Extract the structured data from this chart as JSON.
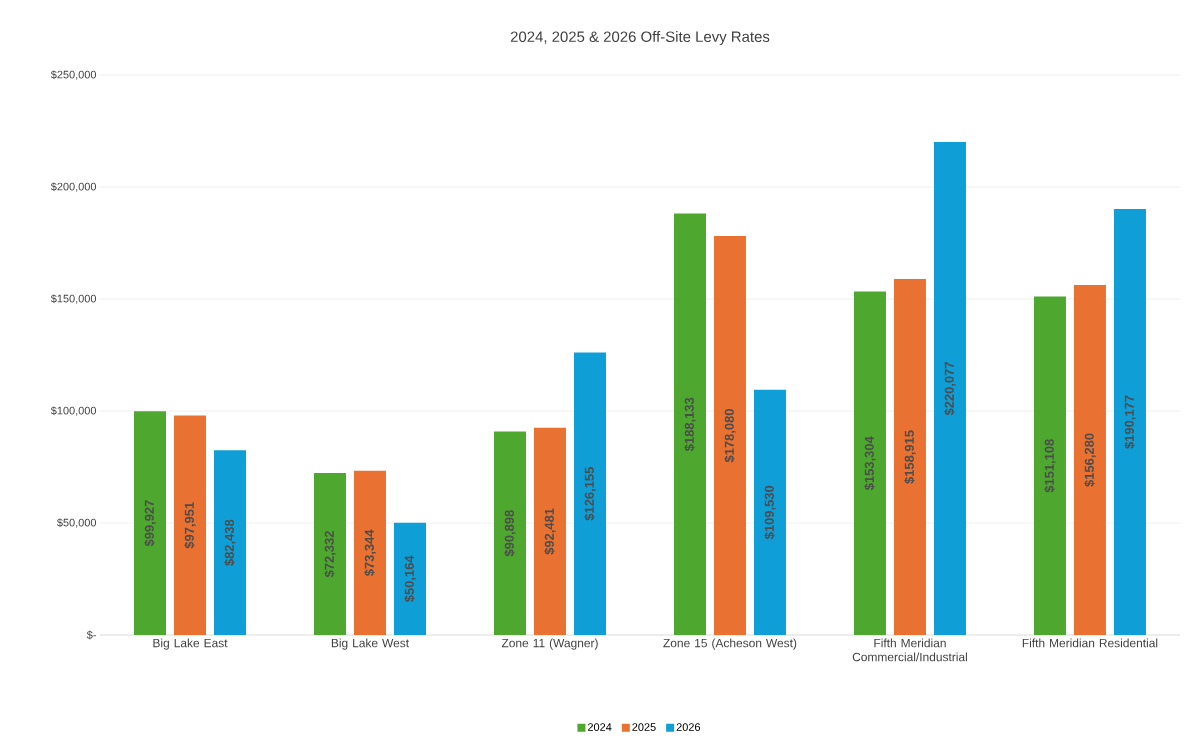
{
  "chart_data": {
    "type": "bar",
    "title": "2024, 2025 & 2026 Off-Site Levy Rates",
    "categories": [
      "Big Lake East",
      "Big Lake West",
      "Zone 11 (Wagner)",
      "Zone 15 (Acheson West)",
      "Fifth Meridian Commercial/Industrial",
      "Fifth Meridian Residential"
    ],
    "series": [
      {
        "name": "2024",
        "color": "#4ea72e",
        "values": [
          99927,
          72332,
          90898,
          188133,
          153304,
          151108
        ],
        "value_labels": [
          "$99,927",
          "$72,332",
          "$90,898",
          "$188,133",
          "$153,304",
          "$151,108"
        ]
      },
      {
        "name": "2025",
        "color": "#e97132",
        "values": [
          97951,
          73344,
          92481,
          178080,
          158915,
          156280
        ],
        "value_labels": [
          "$97,951",
          "$73,344",
          "$92,481",
          "$178,080",
          "$158,915",
          "$156,280"
        ]
      },
      {
        "name": "2026",
        "color": "#0f9ed5",
        "values": [
          82438,
          50164,
          126155,
          109530,
          220077,
          190177
        ],
        "value_labels": [
          "$82,438",
          "$50,164",
          "$126,155",
          "$109,530",
          "$220,077",
          "$190,177"
        ]
      }
    ],
    "ylim": [
      0,
      250000
    ],
    "yticks": [
      {
        "value": 0,
        "label": "$-"
      },
      {
        "value": 50000,
        "label": "$50,000"
      },
      {
        "value": 100000,
        "label": "$100,000"
      },
      {
        "value": 150000,
        "label": "$150,000"
      },
      {
        "value": 200000,
        "label": "$200,000"
      },
      {
        "value": 250000,
        "label": "$250,000"
      }
    ],
    "grid": "y",
    "legend": "bottom"
  }
}
